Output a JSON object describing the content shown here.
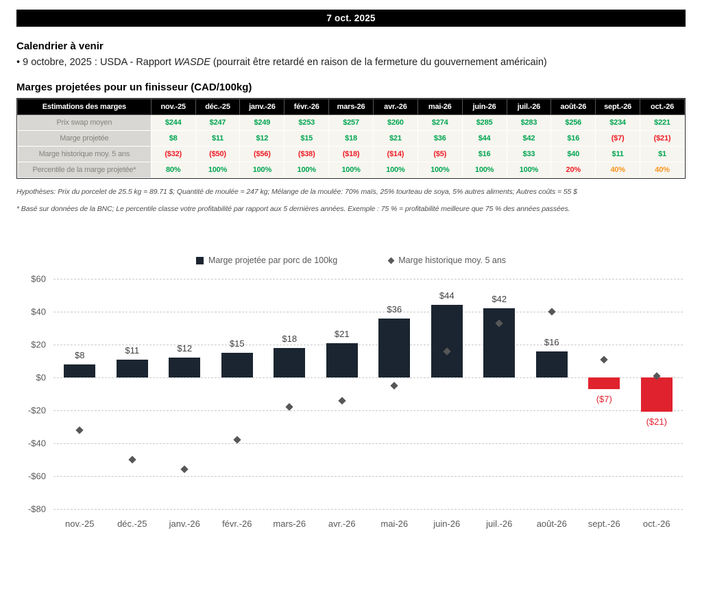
{
  "header": {
    "date": "7 oct. 2025"
  },
  "calendar": {
    "title": "Calendrier à venir",
    "bullet_prefix": "• 9 octobre, 2025 : USDA - Rapport ",
    "bullet_italic": "WASDE",
    "bullet_suffix": " (pourrait être retardé en raison de la fermeture du gouvernement américain)"
  },
  "margins_section": {
    "title": "Marges projetées pour un finisseur (CAD/100kg)",
    "table": {
      "header": [
        "Estimations des marges",
        "nov.-25",
        "déc.-25",
        "janv.-26",
        "févr.-26",
        "mars-26",
        "avr.-26",
        "mai-26",
        "juin-26",
        "juil.-26",
        "août-26",
        "sept.-26",
        "oct.-26"
      ],
      "rows": [
        {
          "label": "Prix swap moyen",
          "cells": [
            "$244",
            "$247",
            "$249",
            "$253",
            "$257",
            "$260",
            "$274",
            "$285",
            "$283",
            "$256",
            "$234",
            "$221"
          ],
          "cell_colors": [
            "g",
            "g",
            "g",
            "g",
            "g",
            "g",
            "g",
            "g",
            "g",
            "g",
            "g",
            "g"
          ]
        },
        {
          "label": "Marge projetée",
          "cells": [
            "$8",
            "$11",
            "$12",
            "$15",
            "$18",
            "$21",
            "$36",
            "$44",
            "$42",
            "$16",
            "($7)",
            "($21)"
          ],
          "cell_colors": [
            "g",
            "g",
            "g",
            "g",
            "g",
            "g",
            "g",
            "g",
            "g",
            "g",
            "r",
            "r"
          ]
        },
        {
          "label": "Marge historique moy. 5 ans",
          "cells": [
            "($32)",
            "($50)",
            "($56)",
            "($38)",
            "($18)",
            "($14)",
            "($5)",
            "$16",
            "$33",
            "$40",
            "$11",
            "$1"
          ],
          "cell_colors": [
            "r",
            "r",
            "r",
            "r",
            "r",
            "r",
            "r",
            "g",
            "g",
            "g",
            "g",
            "g"
          ]
        },
        {
          "label": "Percentile de la marge projetée*",
          "cells": [
            "80%",
            "100%",
            "100%",
            "100%",
            "100%",
            "100%",
            "100%",
            "100%",
            "100%",
            "20%",
            "40%",
            "40%"
          ],
          "cell_colors": [
            "g",
            "g",
            "g",
            "g",
            "g",
            "g",
            "g",
            "g",
            "g",
            "r",
            "o",
            "o"
          ]
        }
      ],
      "color_map": {
        "g": "#00a551",
        "r": "#ee1c25",
        "o": "#f7941d"
      }
    },
    "footnote1": "Hypothèses: Prix du porcelet de 25.5 kg = 89.71 $; Quantité de moulée = 247 kg; Mélange de la moulée: 70% maïs, 25% tourteau de soya, 5% autres aliments; Autres coûts = 55 $",
    "footnote2": "* Basé sur données de la BNC; Le percentile classe votre profitabilité par rapport aux 5 dernières années. Exemple : 75 % = profitabilité meilleure que 75 % des années passées."
  },
  "chart_data": {
    "type": "bar",
    "title": "",
    "categories": [
      "nov.-25",
      "déc.-25",
      "janv.-26",
      "févr.-26",
      "mars-26",
      "avr.-26",
      "mai-26",
      "juin-26",
      "juil.-26",
      "août-26",
      "sept.-26",
      "oct.-26"
    ],
    "series": [
      {
        "name": "Marge projetée par porc de 100kg",
        "type": "bar",
        "values": [
          8,
          11,
          12,
          15,
          18,
          21,
          36,
          44,
          42,
          16,
          -7,
          -21
        ]
      },
      {
        "name": "Marge historique moy. 5 ans",
        "type": "scatter-diamond",
        "values": [
          -32,
          -50,
          -56,
          -38,
          -18,
          -14,
          -5,
          16,
          33,
          40,
          11,
          1
        ]
      }
    ],
    "ylim": [
      -80,
      60
    ],
    "ytick_step": 20,
    "grid": "dashed-horizontal",
    "legend_position": "top",
    "colors": {
      "bar_positive": "#1b2531",
      "bar_negative": "#e0222e",
      "diamond": "#575757"
    }
  }
}
